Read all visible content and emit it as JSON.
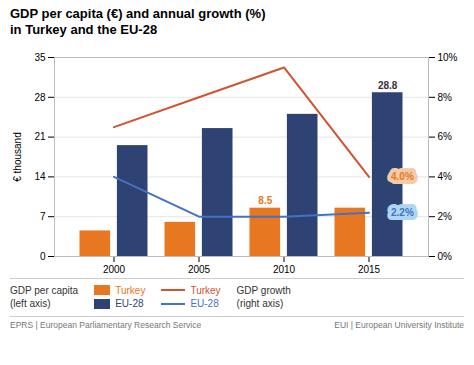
{
  "chart_data": {
    "type": "bar",
    "title": "GDP per capita (€) and annual growth (%)",
    "subtitle": "in Turkey and the EU-28",
    "x": [
      2000,
      2005,
      2010,
      2015
    ],
    "xlim": [
      1996.5,
      2018.5
    ],
    "xticks": [
      2000,
      2005,
      2010,
      2015
    ],
    "ylim": [
      0,
      35
    ],
    "yticks": [
      0,
      7,
      14,
      21,
      28,
      35
    ],
    "ylabel": "€ thousand",
    "y2lim": [
      0,
      10
    ],
    "y2ticks": [
      {
        "value": 0,
        "label": "0%"
      },
      {
        "value": 2,
        "label": "2%"
      },
      {
        "value": 4,
        "label": "4%"
      },
      {
        "value": 6,
        "label": "6%"
      },
      {
        "value": 8,
        "label": "8%"
      },
      {
        "value": 10,
        "label": "10%"
      }
    ],
    "grid": true,
    "series": [
      {
        "name": "Turkey",
        "type": "bar",
        "color": "#E87722",
        "values": [
          4.5,
          6.0,
          8.5,
          8.5
        ]
      },
      {
        "name": "EU-28",
        "type": "bar",
        "color": "#2E4274",
        "values": [
          19.5,
          22.5,
          25.0,
          28.8
        ]
      },
      {
        "name": "Turkey",
        "type": "line",
        "axis": "y2",
        "color": "#D35230",
        "values": [
          6.5,
          8.0,
          9.5,
          4.0
        ]
      },
      {
        "name": "EU-28",
        "type": "line",
        "axis": "y2",
        "color": "#4472C4",
        "values": [
          4.0,
          2.0,
          2.0,
          2.2
        ]
      }
    ],
    "legend_groups": [
      {
        "title": "GDP per capita\n(left axis)",
        "axis": "y"
      },
      {
        "title": "GDP growth\n(right axis)",
        "axis": "y2"
      }
    ],
    "annotations": [
      {
        "text": "28.8",
        "x": 2015,
        "y": 28.8,
        "series": "EU-28",
        "axis": "y",
        "color": "#333333"
      },
      {
        "text": "8.5",
        "x": 2010,
        "y": 8.5,
        "series": "Turkey",
        "axis": "y",
        "color": "#E87722"
      },
      {
        "text": "4.0%",
        "x": 2015,
        "y": 4.0,
        "axis": "y2",
        "color": "#E87722",
        "background": "#F5CBA7"
      },
      {
        "text": "2.2%",
        "x": 2015,
        "y": 2.2,
        "axis": "y2",
        "color": "#4472C4",
        "background": "#AED6F1"
      }
    ],
    "footer": [
      "EPRS | European Parliamentary Research Service",
      "EUI | European University Institute"
    ]
  }
}
